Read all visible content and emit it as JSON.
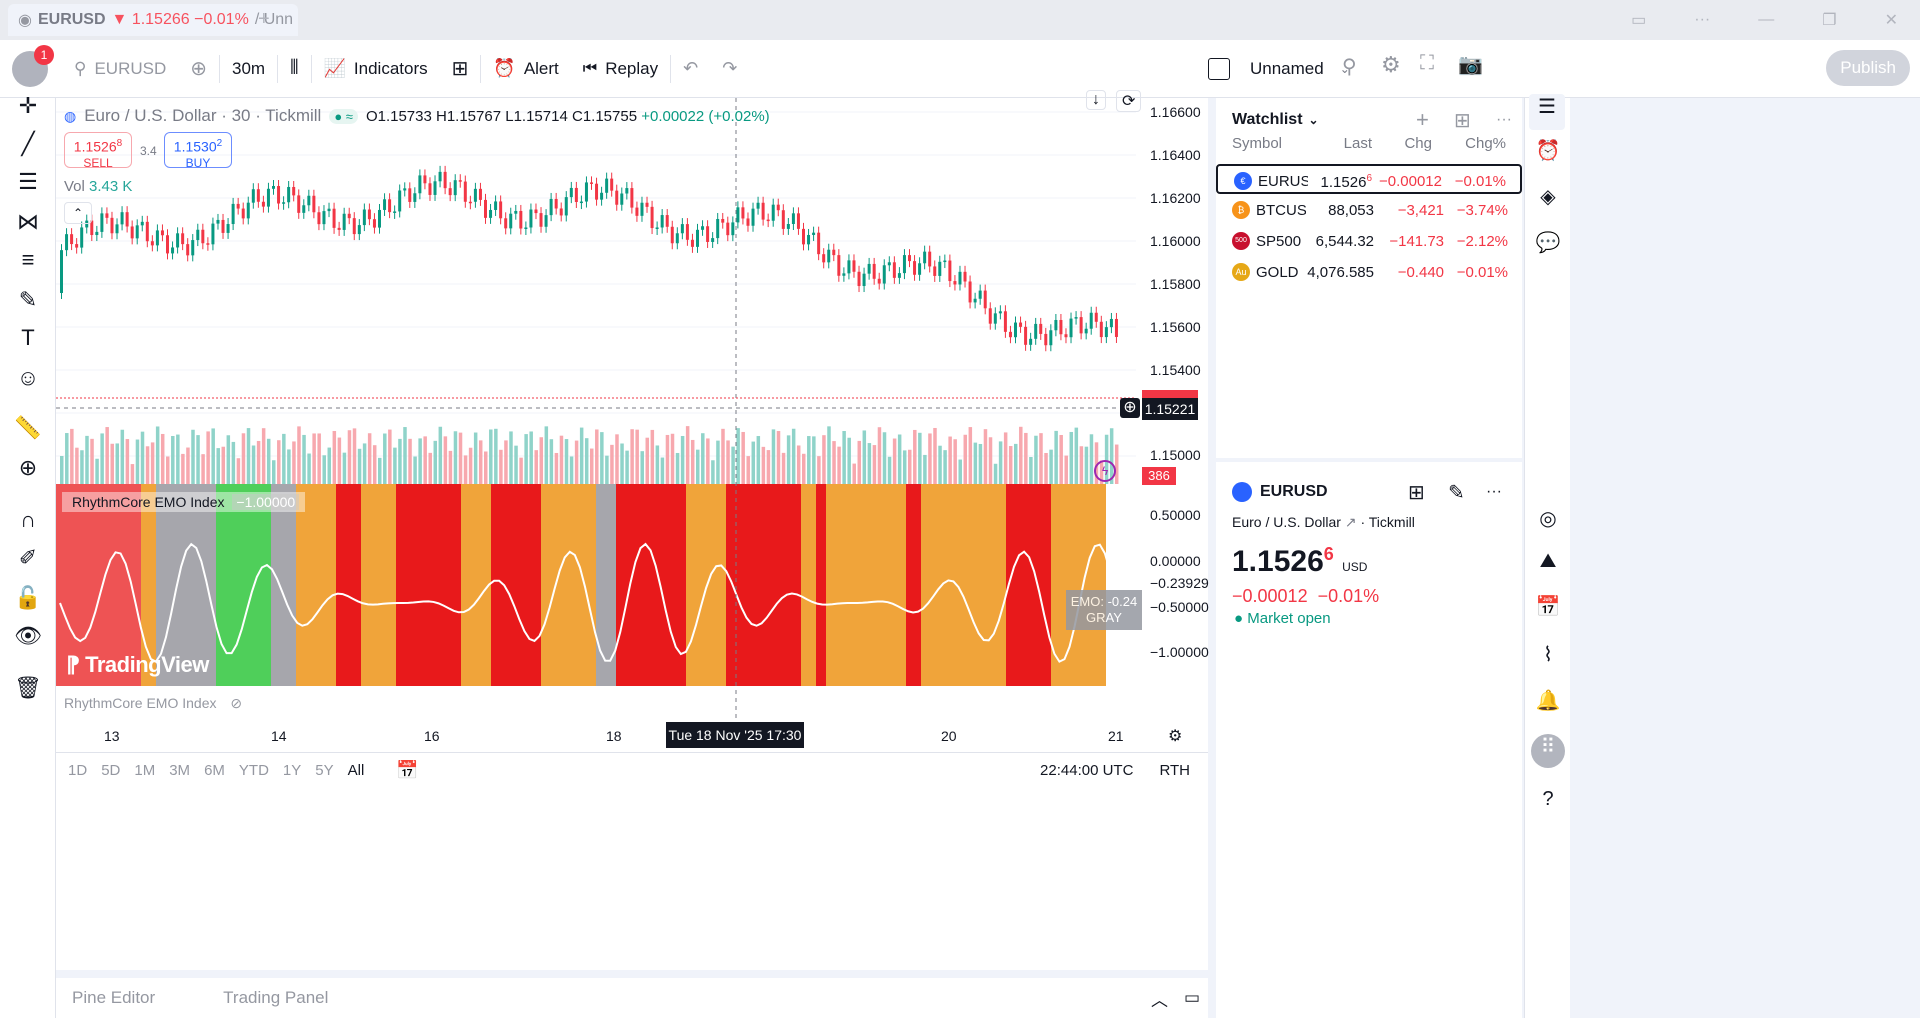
{
  "window": {
    "tab_symbol": "EURUSD",
    "tab_change": "▼ 1.15266 −0.01%",
    "tab_layout": "/ Unn"
  },
  "toolbar": {
    "notifications_count": "1",
    "symbol": "EURUSD",
    "interval": "30m",
    "indicators_label": "Indicators",
    "alert_label": "Alert",
    "replay_label": "Replay",
    "layout_name": "Unnamed",
    "publish_label": "Publish"
  },
  "chart": {
    "title": "Euro / U.S. Dollar · 30 · Tickmill",
    "ohlc": {
      "open": "O1.15733",
      "high": "H1.15767",
      "low": "L1.15714",
      "close": "C1.15755",
      "change": "+0.00022 (+0.02%)"
    },
    "sell_price": "1.1526",
    "sell_sup": "8",
    "sell_label": "SELL",
    "spread": "3.4",
    "buy_price": "1.1530",
    "buy_sup": "2",
    "buy_label": "BUY",
    "volume_label": "Vol",
    "volume_value": "3.43 K",
    "price_axis": [
      "1.16600",
      "1.16400",
      "1.16200",
      "1.16000",
      "1.15800",
      "1.15600",
      "1.15400",
      "1.15000"
    ],
    "current_price_badge": "1.15221",
    "volume_badge": "386",
    "indicator_name": "RhythmCore EMO Index",
    "indicator_value": "−1.00000",
    "indicator_axis": [
      "0.50000",
      "0.00000",
      "−0.23929",
      "−0.50000",
      "−1.00000"
    ],
    "emo_badge_line1": "EMO: -0.24",
    "emo_badge_line2": "GRAY",
    "watermark": "TradingView",
    "time_axis": [
      "13",
      "14",
      "16",
      "18",
      "20",
      "21"
    ],
    "crosshair_time": "Tue 18 Nov '25   17:30",
    "ranges": [
      "1D",
      "5D",
      "1M",
      "3M",
      "6M",
      "YTD",
      "1Y",
      "5Y",
      "All"
    ],
    "clock": "22:44:00 UTC",
    "session": "RTH",
    "colors": {
      "up": "#089981",
      "down": "#f23645",
      "emo_red": "#e8191b",
      "emo_orange": "#f0a43a",
      "emo_gray": "#a6a6ac",
      "emo_green": "#4fcf5a"
    }
  },
  "bottom_tabs": [
    "Pine Editor",
    "Trading Panel"
  ],
  "watchlist": {
    "title": "Watchlist",
    "columns": [
      "Symbol",
      "Last",
      "Chg",
      "Chg%"
    ],
    "rows": [
      {
        "symbol": "EURUSD",
        "last": "1.1526",
        "last_sup": "6",
        "chg": "−0.00012",
        "chgp": "−0.01%",
        "icon_color": "#2962ff",
        "icon": "€"
      },
      {
        "symbol": "BTCUSD",
        "last": "88,053",
        "last_sup": "",
        "chg": "−3,421",
        "chgp": "−3.74%",
        "icon_color": "#f7931a",
        "icon": "₿"
      },
      {
        "symbol": "SP500",
        "last": "6,544.32",
        "last_sup": "",
        "chg": "−141.73",
        "chgp": "−2.12%",
        "icon_color": "#c8102e",
        "icon": "500"
      },
      {
        "symbol": "GOLD",
        "last": "4,076.585",
        "last_sup": "",
        "chg": "−0.440",
        "chgp": "−0.01%",
        "icon_color": "#e6a817",
        "icon": "Au"
      }
    ]
  },
  "details": {
    "symbol": "EURUSD",
    "description": "Euro / U.S. Dollar",
    "exchange": "Tickmill",
    "price": "1.1526",
    "price_sup": "6",
    "currency": "USD",
    "change": "−0.00012",
    "change_pct": "−0.01%",
    "status": "Market open"
  }
}
